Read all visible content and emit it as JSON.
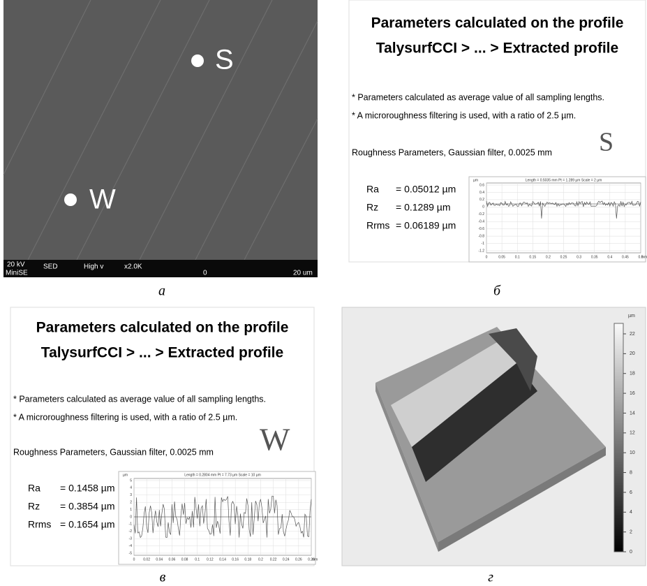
{
  "sem_image": {
    "caption": "а",
    "points": [
      "S",
      "W"
    ],
    "info_bar": [
      "20 kV",
      "SED",
      "High v",
      "x2.0K",
      "0",
      "20 um"
    ],
    "detector": "MiniSE"
  },
  "profile_s": {
    "caption": "б",
    "title": [
      "Parameters calculated on the profile",
      "TalysurfCCI > ... > Extracted profile"
    ],
    "notes": [
      "* Parameters calculated as average value of all sampling lengths.",
      "* A microroughness filtering is used, with a ratio of 2.5 µm."
    ],
    "filter": "Roughness Parameters, Gaussian filter, 0.0025 mm",
    "mark": "S",
    "parameters": [
      {
        "name": "Ra",
        "value": "= 0.05012 µm"
      },
      {
        "name": "Rz",
        "value": "= 0.1289 µm"
      },
      {
        "name": "Rrms",
        "value": "= 0.06189 µm"
      }
    ],
    "plot": {
      "header": "Length = 0.5035 mm  Pt = 1.289 µm  Scale = 2 µm",
      "y_unit": "µm",
      "yticks": [
        "0.6",
        "0.4",
        "0.2",
        "0",
        "-0.2",
        "-0.4",
        "-0.6",
        "-0.8",
        "-1",
        "-1.2"
      ],
      "xticks": [
        "0",
        "0.05",
        "0.1",
        "0.15",
        "0.2",
        "0.25",
        "0.3",
        "0.35",
        "0.4",
        "0.45",
        "0.5"
      ],
      "x_unit": "mm"
    }
  },
  "profile_w": {
    "caption": "в",
    "title": [
      "Parameters calculated on the profile",
      "TalysurfCCI > ... > Extracted profile"
    ],
    "notes": [
      "* Parameters calculated as average value of all sampling lengths.",
      "* A microroughness filtering is used, with a ratio of 2.5 µm."
    ],
    "filter": "Roughness Parameters, Gaussian filter, 0.0025 mm",
    "mark": "W",
    "parameters": [
      {
        "name": "Ra",
        "value": "= 0.1458 µm"
      },
      {
        "name": "Rz",
        "value": "= 0.3854 µm"
      },
      {
        "name": "Rrms",
        "value": "= 0.1654 µm"
      }
    ],
    "plot": {
      "header": "Length = 0.2804 mm  Pt = 7.73 µm  Scale = 10 µm",
      "y_unit": "µm",
      "yticks": [
        "5",
        "4",
        "3",
        "2",
        "1",
        "0",
        "-1",
        "-2",
        "-3",
        "-4",
        "-5"
      ],
      "xticks": [
        "0",
        "0.02",
        "0.04",
        "0.06",
        "0.08",
        "0.1",
        "0.12",
        "0.14",
        "0.16",
        "0.18",
        "0.2",
        "0.22",
        "0.24",
        "0.26",
        "0.28"
      ],
      "x_unit": "mm"
    }
  },
  "surface_3d": {
    "caption": "г",
    "colorbar_unit": "µm",
    "colorbar_ticks": [
      "22",
      "20",
      "18",
      "16",
      "14",
      "12",
      "10",
      "8",
      "6",
      "4",
      "2",
      "0"
    ]
  }
}
